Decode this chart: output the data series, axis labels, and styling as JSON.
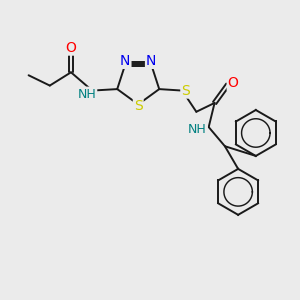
{
  "bg_color": "#ebebeb",
  "bond_color": "#1a1a1a",
  "atom_colors": {
    "O": "#ff0000",
    "N": "#0000ee",
    "S": "#cccc00",
    "NH": "#008080",
    "C": "#1a1a1a"
  },
  "lw": 1.4,
  "fs": 8.5,
  "xlim": [
    0,
    10
  ],
  "ylim": [
    0,
    10
  ]
}
